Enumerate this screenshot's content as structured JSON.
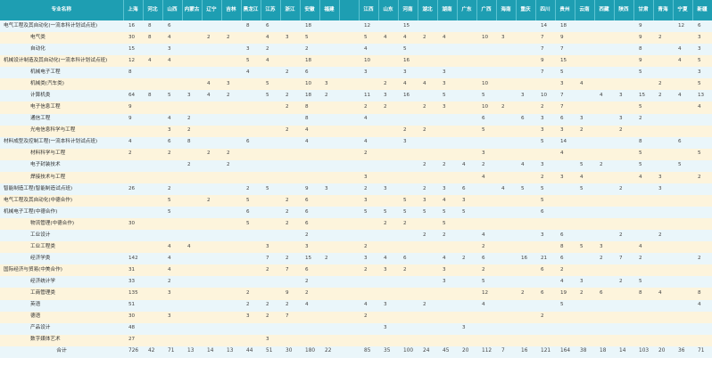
{
  "header": {
    "major_col": "专业名称",
    "provinces": [
      "上海",
      "河北",
      "山西",
      "内蒙古",
      "辽宁",
      "吉林",
      "黑龙江",
      "江苏",
      "浙江",
      "安徽",
      "福建",
      "",
      "江西",
      "山东",
      "河南",
      "湖北",
      "湖南",
      "广东",
      "广西",
      "海南",
      "重庆",
      "四川",
      "贵州",
      "云南",
      "西藏",
      "陕西",
      "甘肃",
      "青海",
      "宁夏",
      "新疆"
    ]
  },
  "rows": [
    {
      "name": "电气工程及其自动化(一流本科计划试点班)",
      "indent": 0,
      "cells": [
        "16",
        "8",
        "6",
        "",
        "",
        "",
        "8",
        "6",
        "",
        "18",
        "",
        "",
        "12",
        "",
        "15",
        "",
        "",
        "",
        "",
        "",
        "",
        "14",
        "18",
        "",
        "",
        "",
        "9",
        "",
        "12",
        "6"
      ]
    },
    {
      "name": "电气类",
      "indent": 1,
      "cells": [
        "30",
        "8",
        "4",
        "",
        "2",
        "2",
        "",
        "4",
        "3",
        "5",
        "",
        "",
        "5",
        "4",
        "4",
        "2",
        "4",
        "",
        "10",
        "3",
        "",
        "7",
        "9",
        "",
        "",
        "",
        "9",
        "2",
        "",
        "3"
      ]
    },
    {
      "name": "自动化",
      "indent": 1,
      "cells": [
        "15",
        "",
        "3",
        "",
        "",
        "",
        "3",
        "2",
        "",
        "2",
        "",
        "",
        "4",
        "",
        "5",
        "",
        "",
        "",
        "",
        "",
        "",
        "7",
        "7",
        "",
        "",
        "",
        "8",
        "",
        "4",
        "3"
      ]
    },
    {
      "name": "机械设计制造及其自动化(一流本科计划试点班)",
      "indent": 0,
      "cells": [
        "12",
        "4",
        "4",
        "",
        "",
        "",
        "5",
        "4",
        "",
        "18",
        "",
        "",
        "10",
        "",
        "16",
        "",
        "",
        "",
        "",
        "",
        "",
        "9",
        "15",
        "",
        "",
        "",
        "9",
        "",
        "4",
        "5"
      ]
    },
    {
      "name": "机械电子工程",
      "indent": 1,
      "cells": [
        "8",
        "",
        "",
        "",
        "",
        "",
        "4",
        "",
        "2",
        "6",
        "",
        "",
        "3",
        "",
        "3",
        "",
        "3",
        "",
        "",
        "",
        "",
        "7",
        "5",
        "",
        "",
        "",
        "5",
        "",
        "",
        "3"
      ]
    },
    {
      "name": "机械类(汽车类)",
      "indent": 1,
      "cells": [
        "",
        "",
        "",
        "",
        "4",
        "3",
        "",
        "5",
        "",
        "10",
        "3",
        "",
        "",
        "2",
        "4",
        "4",
        "3",
        "",
        "10",
        "",
        "",
        "",
        "3",
        "4",
        "",
        "",
        "",
        "2",
        "",
        "5"
      ]
    },
    {
      "name": "计算机类",
      "indent": 1,
      "cells": [
        "64",
        "8",
        "5",
        "3",
        "4",
        "2",
        "",
        "5",
        "2",
        "18",
        "2",
        "",
        "11",
        "3",
        "16",
        "",
        "5",
        "",
        "5",
        "",
        "3",
        "10",
        "7",
        "",
        "4",
        "3",
        "15",
        "2",
        "4",
        "13"
      ]
    },
    {
      "name": "电子信息工程",
      "indent": 1,
      "cells": [
        "9",
        "",
        "",
        "",
        "",
        "",
        "",
        "",
        "2",
        "8",
        "",
        "",
        "2",
        "2",
        "",
        "2",
        "3",
        "",
        "10",
        "2",
        "",
        "2",
        "7",
        "",
        "",
        "",
        "5",
        "",
        "",
        "4"
      ]
    },
    {
      "name": "通信工程",
      "indent": 1,
      "cells": [
        "9",
        "",
        "4",
        "2",
        "",
        "",
        "",
        "",
        "",
        "8",
        "",
        "",
        "4",
        "",
        "",
        "",
        "",
        "",
        "6",
        "",
        "6",
        "3",
        "6",
        "3",
        "",
        "3",
        "2",
        "",
        "",
        ""
      ]
    },
    {
      "name": "光电信息科学与工程",
      "indent": 1,
      "cells": [
        "",
        "",
        "3",
        "2",
        "",
        "",
        "",
        "",
        "2",
        "4",
        "",
        "",
        "",
        "",
        "2",
        "2",
        "",
        "",
        "5",
        "",
        "",
        "3",
        "3",
        "2",
        "",
        "2",
        "",
        "",
        "",
        ""
      ]
    },
    {
      "name": "材料成型及控制工程(一流本科计划试点班)",
      "indent": 0,
      "cells": [
        "4",
        "",
        "6",
        "8",
        "",
        "",
        "6",
        "",
        "",
        "4",
        "",
        "",
        "4",
        "",
        "3",
        "",
        "",
        "",
        "",
        "",
        "",
        "5",
        "14",
        "",
        "",
        "",
        "8",
        "",
        "6",
        ""
      ]
    },
    {
      "name": "材料科学与工程",
      "indent": 1,
      "cells": [
        "2",
        "",
        "2",
        "",
        "2",
        "2",
        "",
        "",
        "",
        "",
        "",
        "",
        "2",
        "",
        "",
        "",
        "",
        "",
        "3",
        "",
        "",
        "",
        "4",
        "",
        "",
        "",
        "5",
        "",
        "",
        "5"
      ]
    },
    {
      "name": "电子封装技术",
      "indent": 1,
      "cells": [
        "",
        "",
        "",
        "2",
        "",
        "2",
        "",
        "",
        "",
        "",
        "",
        "",
        "",
        "",
        "",
        "2",
        "2",
        "4",
        "2",
        "",
        "4",
        "3",
        "",
        "5",
        "2",
        "",
        "5",
        "",
        "5",
        ""
      ]
    },
    {
      "name": "焊接技术与工程",
      "indent": 1,
      "cells": [
        "",
        "",
        "",
        "",
        "",
        "",
        "",
        "",
        "",
        "",
        "",
        "",
        "3",
        "",
        "",
        "",
        "",
        "",
        "4",
        "",
        "",
        "2",
        "3",
        "4",
        "",
        "",
        "4",
        "3",
        "",
        "2"
      ]
    },
    {
      "name": "智能制造工程(智能制造试点班)",
      "indent": 0,
      "cells": [
        "26",
        "",
        "2",
        "",
        "",
        "",
        "2",
        "5",
        "",
        "9",
        "3",
        "",
        "2",
        "3",
        "",
        "2",
        "3",
        "6",
        "",
        "4",
        "5",
        "5",
        "",
        "5",
        "",
        "2",
        "",
        "3",
        "",
        ""
      ]
    },
    {
      "name": "电气工程及其自动化(中德合作)",
      "indent": 0,
      "cells": [
        "",
        "",
        "5",
        "",
        "2",
        "",
        "5",
        "",
        "2",
        "6",
        "",
        "",
        "3",
        "",
        "5",
        "3",
        "4",
        "3",
        "",
        "",
        "",
        "5",
        "",
        "",
        "",
        "",
        "",
        "",
        "",
        ""
      ]
    },
    {
      "name": "机械电子工程(中德合作)",
      "indent": 0,
      "cells": [
        "",
        "",
        "5",
        "",
        "",
        "",
        "6",
        "",
        "2",
        "6",
        "",
        "",
        "5",
        "5",
        "5",
        "5",
        "5",
        "5",
        "",
        "",
        "",
        "6",
        "",
        "",
        "",
        "",
        "",
        "",
        "",
        ""
      ]
    },
    {
      "name": "物流管理(中德合作)",
      "indent": 1,
      "cells": [
        "30",
        "",
        "",
        "",
        "",
        "",
        "5",
        "",
        "2",
        "6",
        "",
        "",
        "",
        "2",
        "2",
        "",
        "5",
        "",
        "",
        "",
        "",
        "",
        "",
        "",
        "",
        "",
        "",
        "",
        "",
        ""
      ]
    },
    {
      "name": "工业设计",
      "indent": 1,
      "cells": [
        "",
        "",
        "",
        "",
        "",
        "",
        "",
        "",
        "",
        "2",
        "",
        "",
        "",
        "",
        "",
        "2",
        "2",
        "",
        "4",
        "",
        "",
        "3",
        "6",
        "",
        "",
        "2",
        "",
        "2",
        "",
        ""
      ]
    },
    {
      "name": "工业工程类",
      "indent": 1,
      "cells": [
        "",
        "",
        "4",
        "4",
        "",
        "",
        "",
        "3",
        "",
        "3",
        "",
        "",
        "2",
        "",
        "",
        "",
        "",
        "",
        "2",
        "",
        "",
        "",
        "8",
        "5",
        "3",
        "",
        "4",
        "",
        "",
        ""
      ]
    },
    {
      "name": "经济学类",
      "indent": 1,
      "cells": [
        "142",
        "",
        "4",
        "",
        "",
        "",
        "",
        "7",
        "2",
        "15",
        "2",
        "",
        "3",
        "4",
        "6",
        "",
        "4",
        "2",
        "6",
        "",
        "16",
        "21",
        "6",
        "",
        "2",
        "7",
        "2",
        "",
        "",
        "2"
      ]
    },
    {
      "name": "国际经济与贸易(中美合作)",
      "indent": 0,
      "cells": [
        "31",
        "",
        "4",
        "",
        "",
        "",
        "",
        "2",
        "7",
        "6",
        "",
        "",
        "2",
        "3",
        "2",
        "",
        "3",
        "",
        "2",
        "",
        "",
        "6",
        "2",
        "",
        "",
        "",
        "",
        "",
        "",
        ""
      ]
    },
    {
      "name": "经济统计学",
      "indent": 1,
      "cells": [
        "33",
        "",
        "2",
        "",
        "",
        "",
        "",
        "",
        "",
        "2",
        "",
        "",
        "",
        "",
        "",
        "",
        "3",
        "",
        "5",
        "",
        "",
        "",
        "4",
        "3",
        "",
        "2",
        "5",
        "",
        "",
        ""
      ]
    },
    {
      "name": "工商管理类",
      "indent": 1,
      "cells": [
        "135",
        "",
        "3",
        "",
        "",
        "",
        "2",
        "",
        "9",
        "2",
        "",
        "",
        "",
        "",
        "",
        "",
        "",
        "",
        "12",
        "",
        "2",
        "6",
        "19",
        "2",
        "6",
        "",
        "8",
        "4",
        "",
        "8"
      ]
    },
    {
      "name": "英语",
      "indent": 1,
      "cells": [
        "51",
        "",
        "",
        "",
        "",
        "",
        "2",
        "2",
        "2",
        "4",
        "",
        "",
        "4",
        "3",
        "",
        "2",
        "",
        "",
        "4",
        "",
        "",
        "",
        "5",
        "",
        "",
        "",
        "",
        "",
        "",
        "4"
      ]
    },
    {
      "name": "德语",
      "indent": 1,
      "cells": [
        "30",
        "",
        "3",
        "",
        "",
        "",
        "3",
        "2",
        "7",
        "",
        "",
        "",
        "2",
        "",
        "",
        "",
        "",
        "",
        "",
        "",
        "",
        "2",
        "",
        "",
        "",
        "",
        "",
        "",
        "",
        ""
      ]
    },
    {
      "name": "产品设计",
      "indent": 1,
      "cells": [
        "48",
        "",
        "",
        "",
        "",
        "",
        "",
        "",
        "",
        "",
        "",
        "",
        "",
        "3",
        "",
        "",
        "",
        "3",
        "",
        "",
        "",
        "",
        "",
        "",
        "",
        "",
        "",
        "",
        "",
        ""
      ]
    },
    {
      "name": "数字媒体艺术",
      "indent": 1,
      "cells": [
        "27",
        "",
        "",
        "",
        "",
        "",
        "",
        "3",
        "",
        "",
        "",
        "",
        "",
        "",
        "",
        "",
        "",
        "",
        "",
        "",
        "",
        "",
        "",
        "",
        "",
        "",
        "",
        "",
        "",
        ""
      ]
    }
  ],
  "total": {
    "label": "合计",
    "cells": [
      "726",
      "42",
      "71",
      "13",
      "14",
      "13",
      "44",
      "51",
      "30",
      "180",
      "22",
      "",
      "85",
      "35",
      "100",
      "24",
      "45",
      "20",
      "112",
      "7",
      "16",
      "121",
      "164",
      "38",
      "18",
      "14",
      "103",
      "20",
      "36",
      "71"
    ]
  }
}
